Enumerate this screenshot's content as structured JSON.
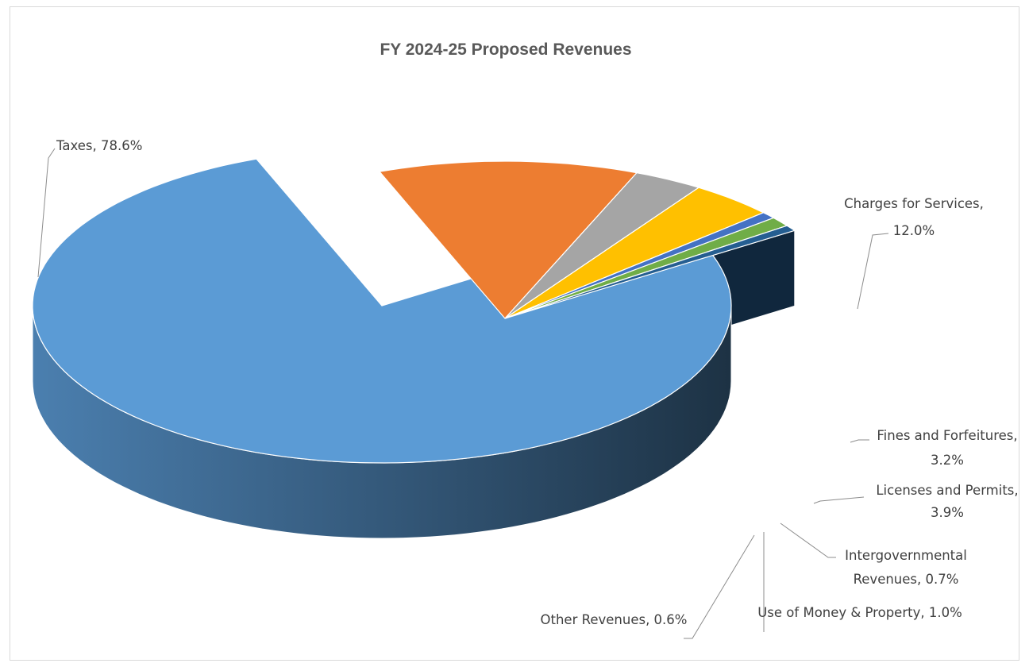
{
  "chart_data": {
    "type": "pie",
    "title": "FY 2024-25 Proposed Revenues",
    "style": "3d-exploded",
    "slices": [
      {
        "label": "Taxes",
        "value": 78.6,
        "display": "78.6%",
        "color": "#5B9BD5"
      },
      {
        "label": "Charges for Services",
        "value": 12.0,
        "display": "12.0%",
        "color": "#ED7D31"
      },
      {
        "label": "Fines and Forfeitures",
        "value": 3.2,
        "display": "3.2%",
        "color": "#A5A5A5"
      },
      {
        "label": "Licenses and Permits",
        "value": 3.9,
        "display": "3.9%",
        "color": "#FFC000"
      },
      {
        "label": "Intergovernmental Revenues",
        "value": 0.7,
        "display": "0.7%",
        "color": "#4472C4"
      },
      {
        "label": "Use of Money & Property",
        "value": 1.0,
        "display": "1.0%",
        "color": "#70AD47"
      },
      {
        "label": "Other Revenues",
        "value": 0.6,
        "display": "0.6%",
        "color": "#255E91"
      }
    ],
    "legend": "none",
    "data_labels": "outside-with-leader-lines"
  }
}
